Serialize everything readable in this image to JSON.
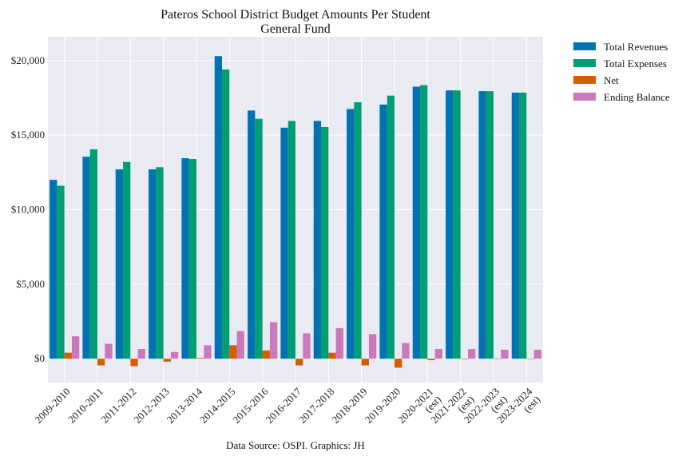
{
  "chart_data": {
    "type": "bar",
    "title": "Pateros School District Budget Amounts Per Student",
    "subtitle": "General Fund",
    "xlabel": "",
    "ylabel": "",
    "ylim": [
      -1600,
      21600
    ],
    "yticks": [
      0,
      5000,
      10000,
      15000,
      20000
    ],
    "ytick_labels": [
      "$0",
      "$5,000",
      "$10,000",
      "$15,000",
      "$20,000"
    ],
    "categories": [
      "2009-2010",
      "2010-2011",
      "2011-2012",
      "2012-2013",
      "2013-2014",
      "2014-2015",
      "2015-2016",
      "2016-2017",
      "2017-2018",
      "2018-2019",
      "2019-2020",
      "2020-2021\n(est)",
      "2021-2022\n(est)",
      "2022-2023\n(est)",
      "2023-2024\n(est)"
    ],
    "series": [
      {
        "name": "Total Revenues",
        "color": "#0173b2",
        "values": [
          12000,
          13550,
          12700,
          12700,
          13450,
          20300,
          16650,
          15500,
          15950,
          16750,
          17050,
          18250,
          18000,
          17950,
          17850
        ]
      },
      {
        "name": "Total Expenses",
        "color": "#029e73",
        "values": [
          11600,
          14050,
          13200,
          12850,
          13400,
          19400,
          16100,
          15950,
          15550,
          17200,
          17650,
          18350,
          18000,
          17950,
          17850
        ]
      },
      {
        "name": "Net",
        "color": "#d55e00",
        "values": [
          400,
          -450,
          -500,
          -200,
          50,
          900,
          550,
          -450,
          400,
          -450,
          -600,
          -100,
          0,
          0,
          0
        ]
      },
      {
        "name": "Ending Balance",
        "color": "#cc78bc",
        "values": [
          1500,
          1000,
          650,
          450,
          900,
          1850,
          2450,
          1700,
          2050,
          1650,
          1050,
          650,
          650,
          600,
          600
        ]
      }
    ],
    "grid": true,
    "legend": "outside-top-right",
    "source_note": "Data Source: OSPI. Graphics: JH"
  },
  "colors": {
    "plot_background": "#eaeaf2",
    "grid": "#ffffff"
  }
}
